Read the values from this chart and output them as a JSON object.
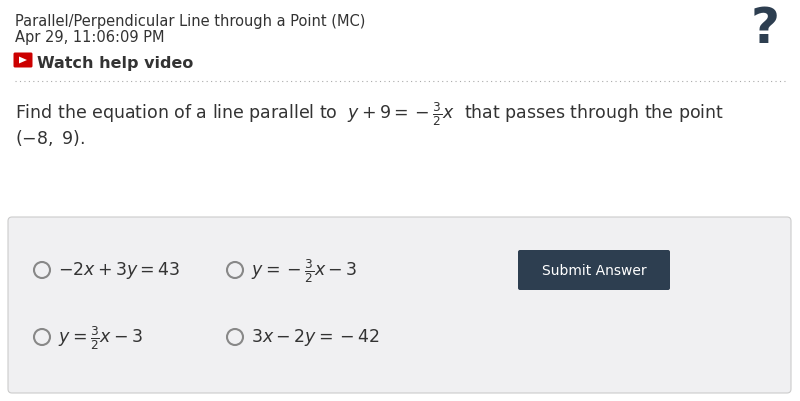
{
  "bg_color": "#ffffff",
  "title_line1": "Parallel/Perpendicular Line through a Point (MC)",
  "title_line2": "Apr 29, 11:06:09 PM",
  "watch_text": "Watch help video",
  "answer_box_bg": "#f0f0f2",
  "answer_box_border": "#cccccc",
  "submit_btn_text": "Submit Answer",
  "submit_btn_bg": "#2d3e50",
  "submit_btn_fg": "#ffffff",
  "youtube_color": "#cc0000",
  "text_color": "#333333",
  "dotted_line_color": "#aaaaaa",
  "question_mark_color": "#2d3e50",
  "title_fs": 10.5,
  "watch_fs": 11.5,
  "question_fs": 12.5,
  "option_fs": 12.5
}
